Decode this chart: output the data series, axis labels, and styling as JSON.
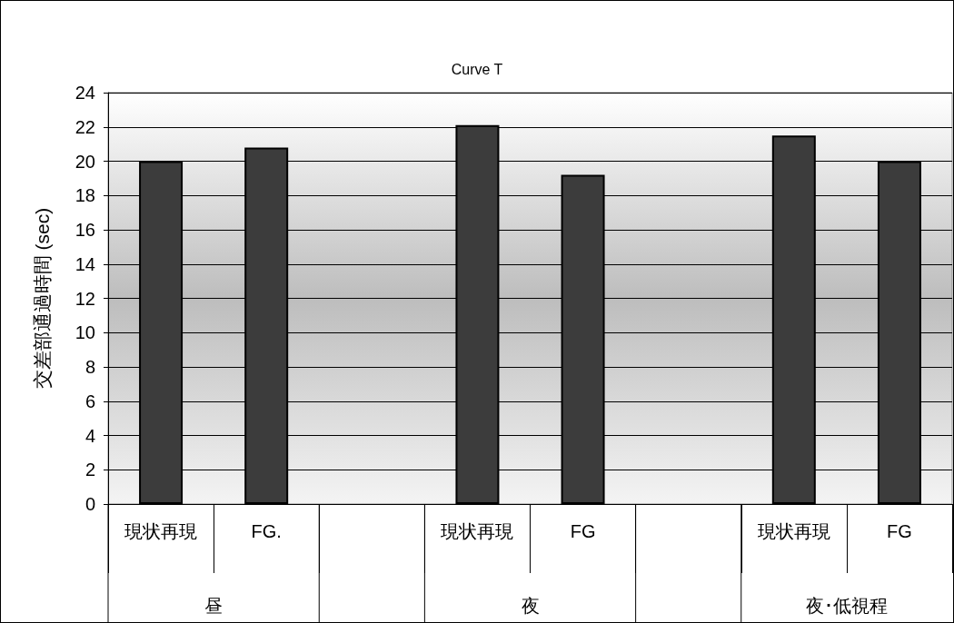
{
  "chart_data": {
    "type": "bar",
    "title": "Curve T",
    "ylabel": "交差部通過時間 (sec)",
    "categories": [
      "現状再現",
      "FG.",
      null,
      "現状再現",
      "FG",
      null,
      "現状再現",
      "FG"
    ],
    "values": [
      20.0,
      20.8,
      null,
      22.1,
      19.2,
      null,
      21.5,
      20.0
    ],
    "color": "#3c3c3c",
    "ylim": [
      0,
      24
    ],
    "yticks": [
      0,
      2,
      4,
      6,
      8,
      10,
      12,
      14,
      16,
      18,
      20,
      22,
      24
    ],
    "grid": "y",
    "annotations": [
      "昼",
      "夜",
      "夜･低視程"
    ]
  }
}
